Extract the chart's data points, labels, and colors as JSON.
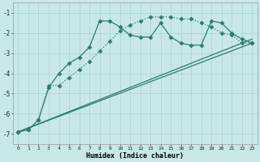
{
  "xlabel": "Humidex (Indice chaleur)",
  "bg_color": "#c8e8e8",
  "grid_color": "#b0d8d8",
  "line_color": "#2e7b6e",
  "xlim": [
    -0.5,
    23.5
  ],
  "ylim": [
    -7.5,
    -0.5
  ],
  "yticks": [
    -7,
    -6,
    -5,
    -4,
    -3,
    -2,
    -1
  ],
  "xticks": [
    0,
    1,
    2,
    3,
    4,
    5,
    6,
    7,
    8,
    9,
    10,
    11,
    12,
    13,
    14,
    15,
    16,
    17,
    18,
    19,
    20,
    21,
    22,
    23
  ],
  "series": [
    {
      "x": [
        0,
        1,
        2,
        3,
        4,
        5,
        6,
        7,
        8,
        9,
        10,
        11,
        12,
        13,
        14,
        15,
        16,
        17,
        18,
        19,
        20,
        21,
        22,
        23
      ],
      "y": [
        -6.9,
        -6.8,
        -6.3,
        -4.7,
        -4.0,
        -3.5,
        -3.2,
        -2.7,
        -1.4,
        -1.4,
        -1.7,
        -2.1,
        -2.2,
        -2.2,
        -1.5,
        -2.2,
        -2.5,
        -2.6,
        -2.6,
        -1.4,
        -1.5,
        -2.0,
        -2.3,
        -2.5
      ],
      "marker": "D",
      "markersize": 2.5,
      "linestyle": "-",
      "linewidth": 0.9
    },
    {
      "x": [
        0,
        1,
        2,
        3,
        4,
        5,
        6,
        7,
        8,
        9,
        10,
        11,
        12,
        13,
        14,
        15,
        16,
        17,
        18,
        19,
        20,
        21,
        22,
        23
      ],
      "y": [
        -6.9,
        -6.8,
        -6.3,
        -4.6,
        -4.6,
        -4.2,
        -3.8,
        -3.4,
        -2.9,
        -2.4,
        -1.9,
        -1.6,
        -1.4,
        -1.2,
        -1.2,
        -1.2,
        -1.3,
        -1.3,
        -1.5,
        -1.7,
        -2.0,
        -2.1,
        -2.5,
        -2.5
      ],
      "marker": "D",
      "markersize": 2.5,
      "linestyle": ":",
      "linewidth": 0.9
    },
    {
      "x": [
        0,
        23
      ],
      "y": [
        -6.9,
        -2.5
      ],
      "marker": null,
      "markersize": 0,
      "linestyle": "-",
      "linewidth": 0.9
    },
    {
      "x": [
        0,
        23
      ],
      "y": [
        -6.9,
        -2.3
      ],
      "marker": null,
      "markersize": 0,
      "linestyle": "-",
      "linewidth": 0.9
    }
  ]
}
